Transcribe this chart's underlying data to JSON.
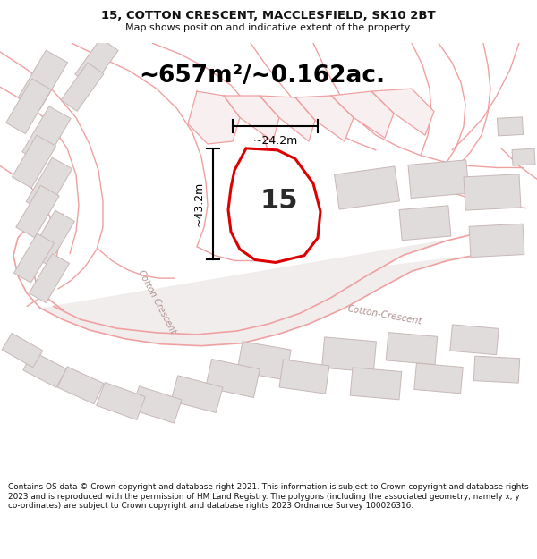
{
  "title": "15, COTTON CRESCENT, MACCLESFIELD, SK10 2BT",
  "subtitle": "Map shows position and indicative extent of the property.",
  "area_text": "~657m²/~0.162ac.",
  "dim_vertical": "~43.2m",
  "dim_horizontal": "~24.2m",
  "label_number": "15",
  "footer": "Contains OS data © Crown copyright and database right 2021. This information is subject to Crown copyright and database rights 2023 and is reproduced with the permission of HM Land Registry. The polygons (including the associated geometry, namely x, y co-ordinates) are subject to Crown copyright and database rights 2023 Ordnance Survey 100026316.",
  "bg_color": "#ffffff",
  "map_bg": "#ffffff",
  "property_fill": "#ffffff",
  "property_stroke": "#dd0000",
  "road_outline_color": "#f0a0a0",
  "road_fill_color": "#f8e8e8",
  "building_fill": "#e0dcdc",
  "building_edge": "#c8b8b8",
  "dim_line_color": "#000000",
  "title_color": "#111111",
  "footer_color": "#111111",
  "road_label_color": "#b09090",
  "cotton_crescent_label1": "Cotton Crescent",
  "cotton_crescent_label2": "Cotton-Crescent"
}
